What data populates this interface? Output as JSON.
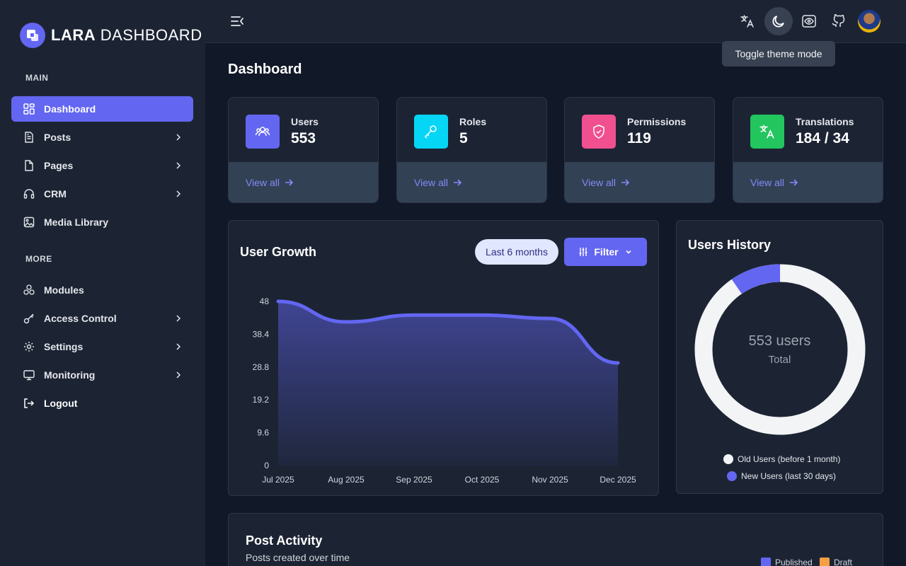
{
  "app": {
    "logo_bold": "LARA",
    "logo_light": " DASHBOARD"
  },
  "sidebar": {
    "section_main": "MAIN",
    "section_more": "MORE",
    "items": [
      {
        "label": "Dashboard",
        "icon": "dashboard-icon",
        "active": true
      },
      {
        "label": "Posts",
        "icon": "document-icon"
      },
      {
        "label": "Pages",
        "icon": "page-icon"
      },
      {
        "label": "CRM",
        "icon": "headphones-icon"
      },
      {
        "label": "Media Library",
        "icon": "image-icon"
      },
      {
        "label": "Modules",
        "icon": "modules-icon"
      },
      {
        "label": "Access Control",
        "icon": "key-icon"
      },
      {
        "label": "Settings",
        "icon": "gear-icon"
      },
      {
        "label": "Monitoring",
        "icon": "monitor-icon"
      },
      {
        "label": "Logout",
        "icon": "logout-icon"
      }
    ]
  },
  "header": {
    "tooltip": "Toggle theme mode"
  },
  "page": {
    "title": "Dashboard"
  },
  "stats": [
    {
      "label": "Users",
      "value": "553",
      "link": "View all",
      "color": "#6366f1"
    },
    {
      "label": "Roles",
      "value": "5",
      "link": "View all",
      "color": "#06d6f5"
    },
    {
      "label": "Permissions",
      "value": "119",
      "link": "View all",
      "color": "#f0508f"
    },
    {
      "label": "Translations",
      "value": "184 / 34",
      "link": "View all",
      "color": "#22c55e"
    }
  ],
  "user_growth": {
    "title": "User Growth",
    "range_pill": "Last 6 months",
    "filter_label": "Filter"
  },
  "users_history": {
    "title": "Users History",
    "center_value": "553 users",
    "center_label": "Total",
    "legend": [
      {
        "label": "Old Users (before 1 month)",
        "color": "#f3f4f6"
      },
      {
        "label": "New Users (last 30 days)",
        "color": "#6366f1"
      }
    ]
  },
  "post_activity": {
    "title": "Post Activity",
    "subtitle": "Posts created over time",
    "legend": [
      {
        "label": "Published",
        "color": "#6366f1"
      },
      {
        "label": "Draft",
        "color": "#f59e42"
      }
    ]
  },
  "chart_data": [
    {
      "type": "area",
      "categories": [
        "Jul 2025",
        "Aug 2025",
        "Sep 2025",
        "Oct 2025",
        "Nov 2025",
        "Dec 2025"
      ],
      "values": [
        48,
        42,
        44,
        44,
        43,
        30
      ],
      "yticks": [
        "48",
        "38.4",
        "28.8",
        "19.2",
        "9.6",
        "0"
      ],
      "ylim": [
        0,
        48
      ],
      "color": "#6366f1"
    },
    {
      "type": "pie",
      "categories": [
        "Old Users (before 1 month)",
        "New Users (last 30 days)"
      ],
      "values": [
        500,
        53
      ],
      "colors": [
        "#f3f4f6",
        "#6366f1"
      ]
    }
  ]
}
